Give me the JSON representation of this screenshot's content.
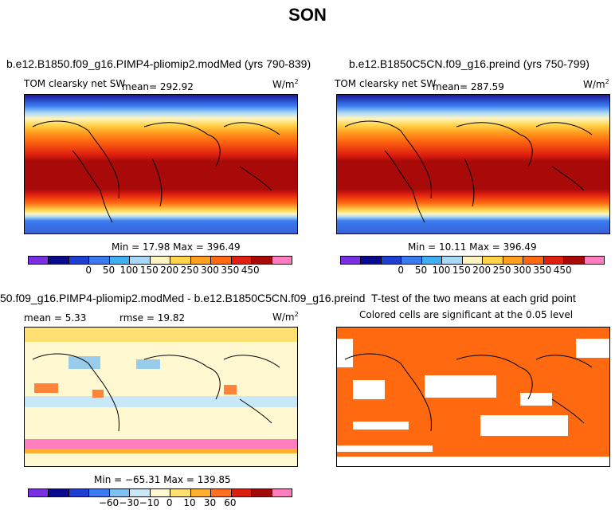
{
  "title": "SON",
  "panels": {
    "p1": {
      "case": "b.e12.B1850.f09_g16.PIMP4-pliomip2.modMed (yrs 790-839)",
      "variable": "TOM clearsky net SW",
      "mean": "mean= 292.92",
      "units": "W/m",
      "units_sup": "2",
      "minmax": "Min =  17.98 Max = 396.49"
    },
    "p2": {
      "case": "b.e12.B1850C5CN.f09_g16.preind (yrs 750-799)",
      "variable": "TOM clearsky net SW",
      "mean": "mean= 287.59",
      "units": "W/m",
      "units_sup": "2",
      "minmax": "Min =  10.11 Max = 396.49"
    },
    "p3": {
      "case": "50.f09_g16.PIMP4-pliomip2.modMed - b.e12.B1850C5CN.f09_g16.preind",
      "mean": "mean =    5.33",
      "rmse": "rmse =  19.82",
      "units": "W/m",
      "units_sup": "2",
      "minmax": "Min = −65.31 Max = 139.85"
    },
    "p4": {
      "title": "T-test of the two means at each grid point",
      "subtitle": "Colored cells are significant at the 0.05 level"
    }
  },
  "colorbar_abs": {
    "labels": [
      "0",
      "50",
      "100",
      "150",
      "200",
      "250",
      "300",
      "350",
      "450"
    ],
    "colors": [
      "#7a2fe0",
      "#0a0a8c",
      "#1f3fd0",
      "#3a7cf0",
      "#40b0f0",
      "#a8d8f8",
      "#fff4c0",
      "#ffd34a",
      "#ffa020",
      "#ff6a10",
      "#e02010",
      "#a80a0a",
      "#ff7ec0"
    ]
  },
  "colorbar_diff": {
    "labels": [
      "−60",
      "−30",
      "−10",
      "0",
      "10",
      "30",
      "60"
    ],
    "colors": [
      "#7a2fe0",
      "#0a0a8c",
      "#1f3fd0",
      "#3a7cf0",
      "#7ec0f0",
      "#c8e8f8",
      "#fff8d0",
      "#ffe070",
      "#ffb030",
      "#ff7020",
      "#d82010",
      "#a00a0a",
      "#ff7ec0"
    ]
  },
  "chart_data": [
    {
      "type": "heatmap",
      "title": "b.e12.B1850.f09_g16.PIMP4-pliomip2.modMed (yrs 790-839)",
      "variable": "TOM clearsky net SW",
      "units": "W/m2",
      "mean": 292.92,
      "min": 17.98,
      "max": 396.49,
      "colorbar_ticks": [
        0,
        50,
        100,
        150,
        200,
        250,
        300,
        350,
        450
      ]
    },
    {
      "type": "heatmap",
      "title": "b.e12.B1850C5CN.f09_g16.preind (yrs 750-799)",
      "variable": "TOM clearsky net SW",
      "units": "W/m2",
      "mean": 287.59,
      "min": 10.11,
      "max": 396.49,
      "colorbar_ticks": [
        0,
        50,
        100,
        150,
        200,
        250,
        300,
        350,
        450
      ]
    },
    {
      "type": "heatmap",
      "title": "50.f09_g16.PIMP4-pliomip2.modMed - b.e12.B1850C5CN.f09_g16.preind",
      "units": "W/m2",
      "mean": 5.33,
      "rmse": 19.82,
      "min": -65.31,
      "max": 139.85,
      "colorbar_ticks": [
        -60,
        -30,
        -10,
        0,
        10,
        30,
        60
      ]
    },
    {
      "type": "heatmap",
      "title": "T-test of the two means at each grid point",
      "subtitle": "Colored cells are significant at the 0.05 level"
    }
  ]
}
